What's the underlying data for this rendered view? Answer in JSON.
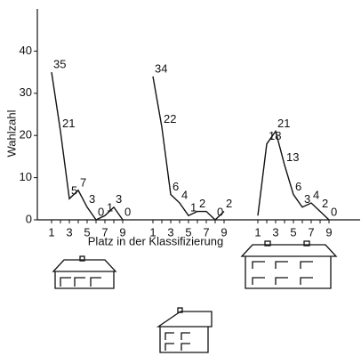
{
  "chart_data": {
    "type": "line",
    "y_label": "Wahlzahl",
    "x_label": "Platz in der Klassifizierung",
    "x": [
      1,
      2,
      3,
      4,
      5,
      6,
      7,
      8,
      9
    ],
    "xticks": [
      1,
      3,
      5,
      7,
      9
    ],
    "ylim": [
      0,
      50
    ],
    "yticks": [
      0,
      10,
      20,
      30,
      40
    ],
    "color": "#111111",
    "series": [
      {
        "values": [
          35,
          21,
          5,
          7,
          3,
          0,
          1,
          3,
          0
        ],
        "value_labels": [
          "35",
          "21",
          "5",
          "7",
          "3",
          "0",
          "1",
          "3",
          "0"
        ]
      },
      {
        "values": [
          34,
          22,
          6,
          4,
          1,
          2,
          2,
          0,
          2
        ],
        "value_labels": [
          "34",
          "22",
          "6",
          "4",
          "1",
          "2",
          null,
          "0",
          "2"
        ]
      },
      {
        "values": [
          1,
          18,
          21,
          13,
          6,
          3,
          4,
          2,
          0
        ],
        "value_labels": [
          null,
          "18",
          "21",
          "13",
          "6",
          "3",
          "4",
          "2",
          "0"
        ]
      }
    ]
  }
}
